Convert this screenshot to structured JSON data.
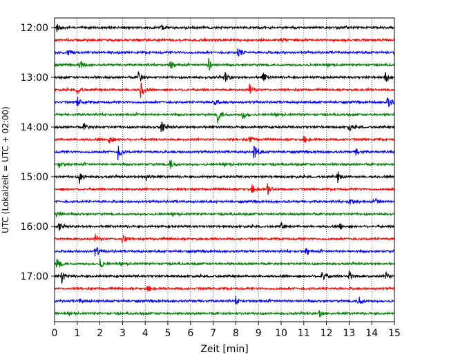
{
  "chart_data": {
    "type": "line",
    "xlabel": "Zeit  [min]",
    "ylabel": "UTC (Lokalzeit = UTC + 02:00)",
    "xlim": [
      0,
      15
    ],
    "x_ticks": [
      "0",
      "1",
      "2",
      "3",
      "4",
      "5",
      "6",
      "7",
      "8",
      "9",
      "10",
      "11",
      "12",
      "13",
      "14",
      "15"
    ],
    "y_tick_labels": [
      "12:00",
      "13:00",
      "14:00",
      "15:00",
      "16:00",
      "17:00"
    ],
    "row_interval_min": 15,
    "row_start": "12:00",
    "row_count": 24,
    "color_cycle": [
      "#000000",
      "#ff0000",
      "#0000ff",
      "#008000"
    ],
    "grid": "vertical dotted at each minute",
    "events": [
      {
        "row": 0,
        "x": 0.1,
        "amp": 0.7
      },
      {
        "row": 0,
        "x": 4.7,
        "amp": 0.4
      },
      {
        "row": 1,
        "x": 10.0,
        "amp": 0.35
      },
      {
        "row": 2,
        "x": 0.6,
        "amp": 0.5
      },
      {
        "row": 2,
        "x": 8.1,
        "amp": 0.9
      },
      {
        "row": 2,
        "x": 15.0,
        "amp": 0.6
      },
      {
        "row": 3,
        "x": 1.1,
        "amp": 0.9
      },
      {
        "row": 3,
        "x": 5.1,
        "amp": 0.8
      },
      {
        "row": 3,
        "x": 6.8,
        "amp": 1.0
      },
      {
        "row": 4,
        "x": 3.7,
        "amp": 1.1
      },
      {
        "row": 4,
        "x": 7.5,
        "amp": 1.0
      },
      {
        "row": 4,
        "x": 9.2,
        "amp": 0.9
      },
      {
        "row": 4,
        "x": 14.6,
        "amp": 0.9
      },
      {
        "row": 5,
        "x": 1.0,
        "amp": 0.7
      },
      {
        "row": 5,
        "x": 3.8,
        "amp": 1.3
      },
      {
        "row": 5,
        "x": 8.6,
        "amp": 0.9
      },
      {
        "row": 6,
        "x": 1.0,
        "amp": 0.9
      },
      {
        "row": 6,
        "x": 7.0,
        "amp": 0.7
      },
      {
        "row": 6,
        "x": 14.7,
        "amp": 1.0
      },
      {
        "row": 7,
        "x": 7.2,
        "amp": 1.3
      },
      {
        "row": 7,
        "x": 8.3,
        "amp": 0.9
      },
      {
        "row": 8,
        "x": 1.3,
        "amp": 0.6
      },
      {
        "row": 8,
        "x": 4.7,
        "amp": 0.9
      },
      {
        "row": 8,
        "x": 13.0,
        "amp": 0.6
      },
      {
        "row": 9,
        "x": 2.4,
        "amp": 1.0
      },
      {
        "row": 9,
        "x": 8.6,
        "amp": 0.7
      },
      {
        "row": 9,
        "x": 11.0,
        "amp": 0.5
      },
      {
        "row": 10,
        "x": 2.8,
        "amp": 1.3
      },
      {
        "row": 10,
        "x": 8.8,
        "amp": 1.3
      },
      {
        "row": 10,
        "x": 13.3,
        "amp": 0.8
      },
      {
        "row": 11,
        "x": 0.2,
        "amp": 0.6
      },
      {
        "row": 11,
        "x": 5.1,
        "amp": 0.9
      },
      {
        "row": 12,
        "x": 1.1,
        "amp": 1.1
      },
      {
        "row": 12,
        "x": 4.0,
        "amp": 0.8
      },
      {
        "row": 12,
        "x": 12.5,
        "amp": 0.9
      },
      {
        "row": 13,
        "x": 8.7,
        "amp": 0.8
      },
      {
        "row": 13,
        "x": 9.4,
        "amp": 0.9
      },
      {
        "row": 14,
        "x": 13.0,
        "amp": 0.8
      },
      {
        "row": 14,
        "x": 14.2,
        "amp": 0.7
      },
      {
        "row": 15,
        "x": 0.1,
        "amp": 0.8
      },
      {
        "row": 16,
        "x": 0.2,
        "amp": 0.5
      },
      {
        "row": 16,
        "x": 10.0,
        "amp": 0.5
      },
      {
        "row": 16,
        "x": 12.6,
        "amp": 0.6
      },
      {
        "row": 17,
        "x": 1.8,
        "amp": 0.7
      },
      {
        "row": 17,
        "x": 3.0,
        "amp": 0.8
      },
      {
        "row": 18,
        "x": 1.8,
        "amp": 1.0
      },
      {
        "row": 18,
        "x": 11.1,
        "amp": 0.7
      },
      {
        "row": 19,
        "x": 0.1,
        "amp": 1.2
      },
      {
        "row": 19,
        "x": 2.0,
        "amp": 0.8
      },
      {
        "row": 20,
        "x": 0.3,
        "amp": 1.2
      },
      {
        "row": 20,
        "x": 11.8,
        "amp": 1.1
      },
      {
        "row": 20,
        "x": 13.0,
        "amp": 0.8
      },
      {
        "row": 20,
        "x": 14.6,
        "amp": 0.8
      },
      {
        "row": 21,
        "x": 4.1,
        "amp": 0.5
      },
      {
        "row": 22,
        "x": 1.1,
        "amp": 0.4
      },
      {
        "row": 22,
        "x": 8.0,
        "amp": 0.5
      },
      {
        "row": 22,
        "x": 13.4,
        "amp": 1.0
      },
      {
        "row": 23,
        "x": 11.7,
        "amp": 0.6
      }
    ]
  }
}
